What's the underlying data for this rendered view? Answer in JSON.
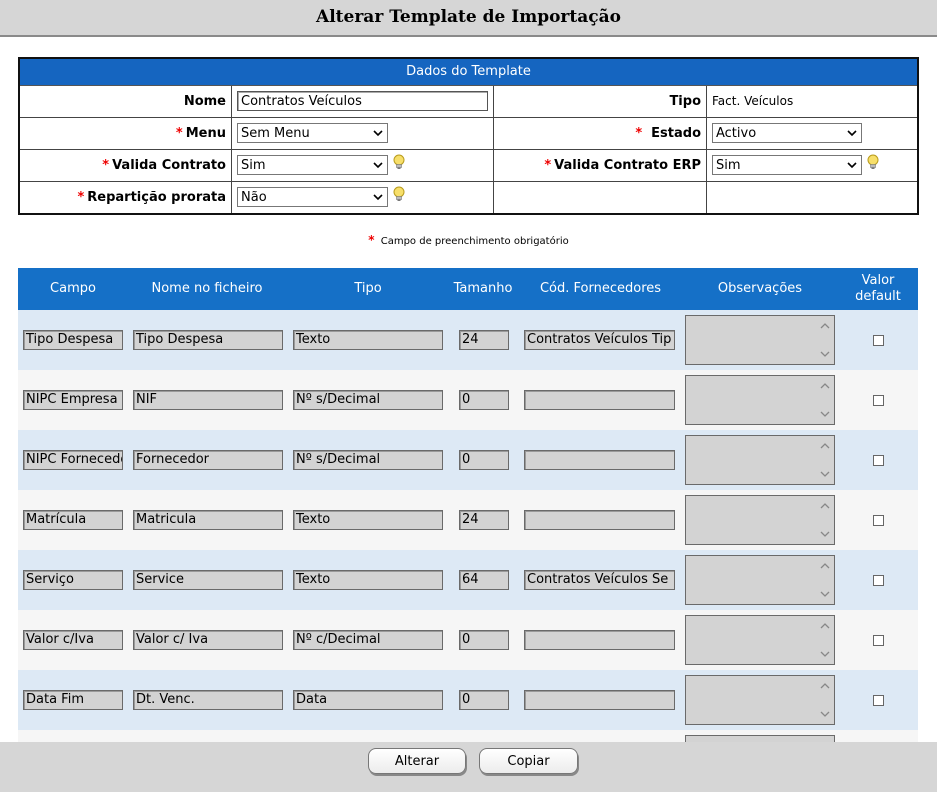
{
  "page_title": "Alterar Template de Importação",
  "form": {
    "header": "Dados do Template",
    "nome_label": "Nome",
    "nome_value": "Contratos Veículos",
    "tipo_label": "Tipo",
    "tipo_value": "Fact. Veículos",
    "menu_label": "Menu",
    "menu_value": "Sem Menu",
    "estado_label": "Estado",
    "estado_value": "Activo",
    "valida_contrato_label": "Valida Contrato",
    "valida_contrato_value": "Sim",
    "valida_erp_label": "Valida Contrato ERP",
    "valida_erp_value": "Sim",
    "reparticao_label": "Repartição prorata",
    "reparticao_value": "Não",
    "required_mark": "*"
  },
  "note": "Campo de preenchimento obrigatório",
  "grid": {
    "headers": {
      "campo": "Campo",
      "nome": "Nome no ficheiro",
      "tipo": "Tipo",
      "tamanho": "Tamanho",
      "cod": "Cód. Fornecedores",
      "obs": "Observações",
      "valor1": "Valor",
      "valor2": "default"
    },
    "rows": [
      {
        "campo": "Tipo Despesa",
        "nome": "Tipo Despesa",
        "tipo": "Texto",
        "tamanho": "24",
        "cod": "Contratos Veículos Tip"
      },
      {
        "campo": "NIPC Empresa",
        "nome": "NIF",
        "tipo": "Nº s/Decimal",
        "tamanho": "0",
        "cod": ""
      },
      {
        "campo": "NIPC Fornecedor",
        "nome": "Fornecedor",
        "tipo": "Nº s/Decimal",
        "tamanho": "0",
        "cod": ""
      },
      {
        "campo": "Matrícula",
        "nome": "Matricula",
        "tipo": "Texto",
        "tamanho": "24",
        "cod": ""
      },
      {
        "campo": "Serviço",
        "nome": "Service",
        "tipo": "Texto",
        "tamanho": "64",
        "cod": "Contratos Veículos Se"
      },
      {
        "campo": "Valor c/Iva",
        "nome": "Valor c/ Iva",
        "tipo": "Nº c/Decimal",
        "tamanho": "0",
        "cod": ""
      },
      {
        "campo": "Data Fim",
        "nome": "Dt. Venc.",
        "tipo": "Data",
        "tamanho": "0",
        "cod": ""
      },
      {
        "campo": "",
        "nome": "",
        "tipo": "",
        "tamanho": "",
        "cod": ""
      }
    ]
  },
  "buttons": {
    "alterar": "Alterar",
    "copiar": "Copiar"
  },
  "colors": {
    "header_blue": "#1565c0",
    "row_alt": "#dde9f5",
    "required": "#e00000"
  }
}
